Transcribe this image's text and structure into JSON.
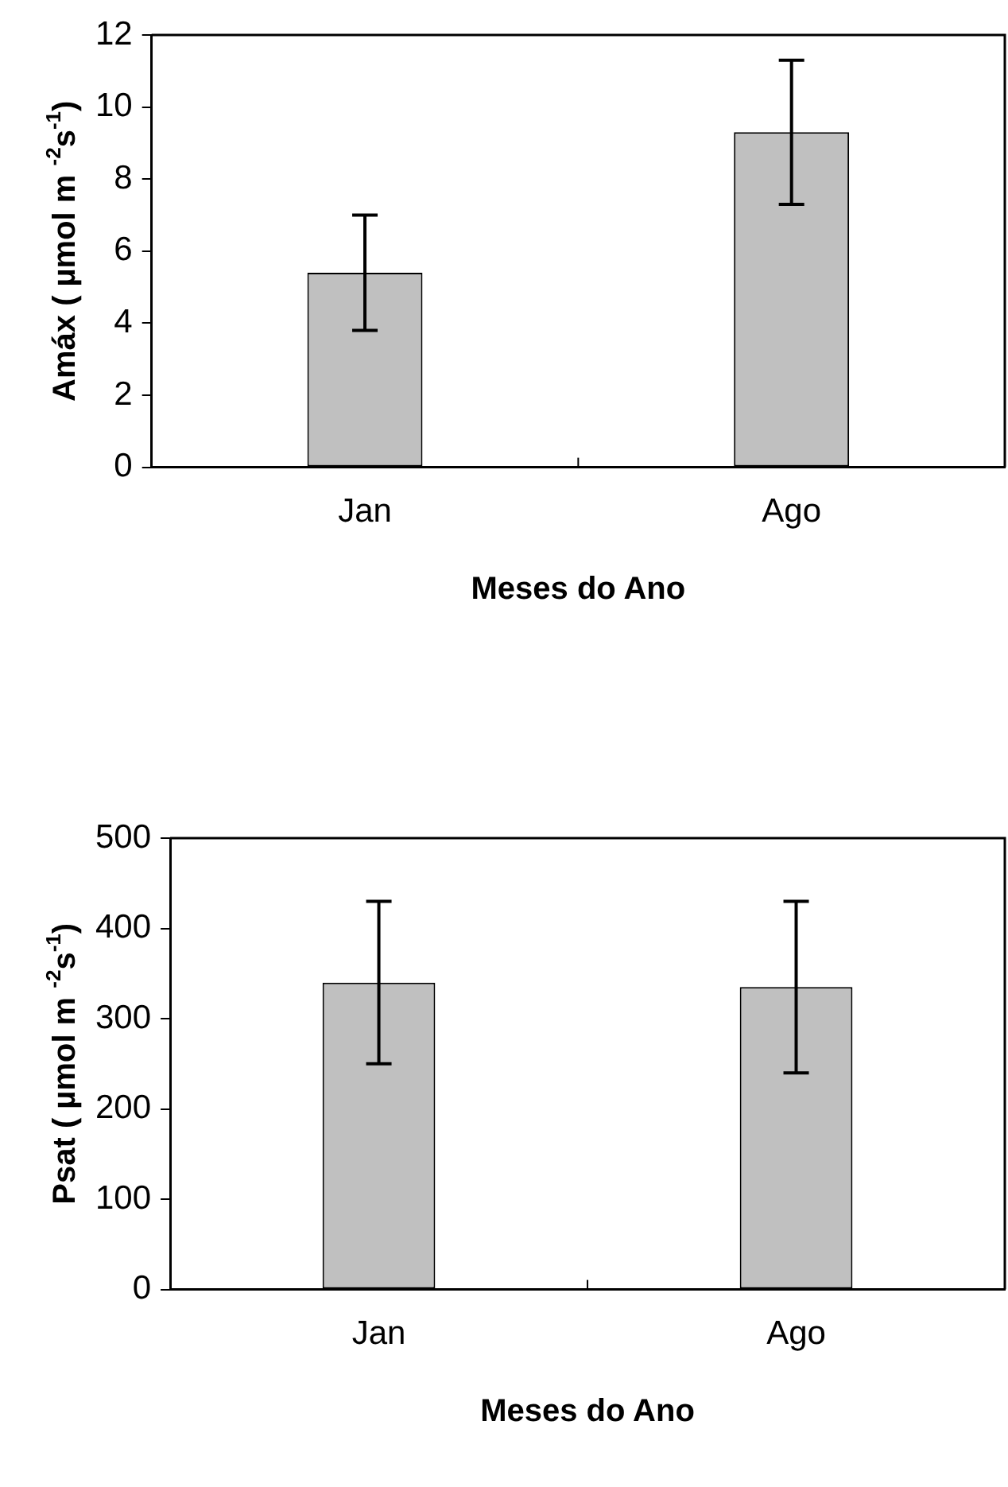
{
  "chart_data": [
    {
      "type": "bar",
      "categories": [
        "Jan",
        "Ago"
      ],
      "values": [
        5.4,
        9.3
      ],
      "errors": [
        1.6,
        2.0
      ],
      "color": "#c0c0c0",
      "xlabel": "Meses do Ano",
      "ylabel": "Amáx ( µmol m $^{-2}$s$^{-1}$)",
      "ylim": [
        0,
        12
      ],
      "yticks": [
        0,
        2,
        4,
        6,
        8,
        10,
        12
      ]
    },
    {
      "type": "bar",
      "categories": [
        "Jan",
        "Ago"
      ],
      "values": [
        340,
        335
      ],
      "errors": [
        90,
        95
      ],
      "color": "#c0c0c0",
      "xlabel": "Meses do Ano",
      "ylabel": "Psat ( µmol m $^{-2}$s$^{-1}$)",
      "ylim": [
        0,
        500
      ],
      "yticks": [
        0,
        100,
        200,
        300,
        400,
        500
      ]
    }
  ]
}
